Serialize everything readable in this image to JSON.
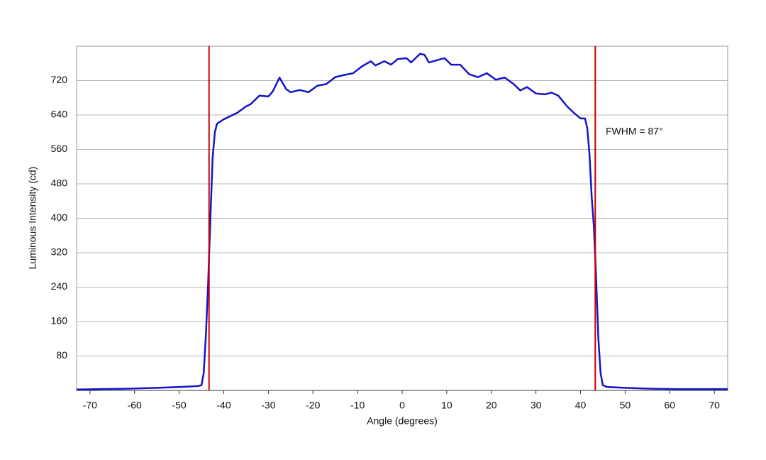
{
  "chart_data": {
    "type": "line",
    "x_label": "Angle (degrees)",
    "y_label": "Luminous Intensity (cd)",
    "annotation": "FWHM = 87°",
    "xlim": [
      -73,
      73
    ],
    "ylim": [
      0,
      800
    ],
    "xticks": [
      -70,
      -60,
      -50,
      -40,
      -30,
      -20,
      -10,
      0,
      10,
      20,
      30,
      40,
      50,
      60,
      70
    ],
    "yticks": [
      80,
      160,
      240,
      320,
      400,
      480,
      560,
      640,
      720
    ],
    "grid": true,
    "vlines": [
      -43.3,
      43.3
    ],
    "vline_color": "#cc0000",
    "x": [
      -73,
      -68,
      -62,
      -55,
      -50,
      -46,
      -45,
      -44.5,
      -44,
      -43.5,
      -43,
      -42.5,
      -42,
      -41.5,
      -40,
      -37,
      -35,
      -34,
      -32,
      -30,
      -29,
      -27.5,
      -26,
      -25,
      -23,
      -21,
      -19,
      -17,
      -15,
      -13,
      -11,
      -9,
      -7,
      -6,
      -4,
      -2.5,
      -1,
      1,
      2,
      4,
      5,
      6,
      8,
      9.5,
      11,
      13,
      15,
      17,
      19,
      21,
      23,
      25,
      26.5,
      28,
      30,
      32,
      33.5,
      35,
      37,
      38.5,
      40,
      41,
      41.5,
      42,
      42.5,
      43,
      43.5,
      44,
      44.5,
      45,
      46,
      50,
      56,
      62,
      73
    ],
    "series": [
      {
        "color": "#1414c8",
        "values": [
          2,
          3,
          4,
          6,
          8,
          10,
          12,
          40,
          130,
          250,
          400,
          540,
          600,
          620,
          630,
          645,
          660,
          665,
          685,
          683,
          695,
          727,
          700,
          693,
          698,
          693,
          708,
          712,
          728,
          733,
          737,
          753,
          765,
          755,
          765,
          757,
          770,
          772,
          762,
          782,
          780,
          762,
          768,
          772,
          757,
          757,
          735,
          728,
          737,
          722,
          727,
          712,
          697,
          705,
          690,
          688,
          692,
          685,
          660,
          645,
          632,
          632,
          610,
          550,
          450,
          380,
          260,
          120,
          40,
          12,
          8,
          6,
          4,
          3,
          3
        ]
      }
    ]
  }
}
